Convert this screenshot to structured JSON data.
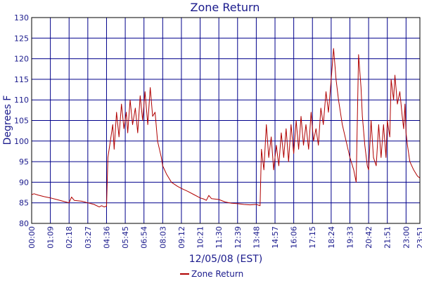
{
  "chart_data": {
    "type": "line",
    "title": "Zone Return",
    "xlabel": "12/05/08 (EST)",
    "ylabel": "Degrees F",
    "ylim": [
      80,
      130
    ],
    "y_ticks": [
      80,
      85,
      90,
      95,
      100,
      105,
      110,
      115,
      120,
      125,
      130
    ],
    "x_ticks": [
      "00:00",
      "01:09",
      "02:18",
      "03:27",
      "04:36",
      "05:45",
      "06:54",
      "08:03",
      "09:12",
      "10:21",
      "11:30",
      "12:39",
      "13:48",
      "14:57",
      "16:06",
      "17:15",
      "18:24",
      "19:33",
      "20:42",
      "21:51",
      "23:00",
      "23:51"
    ],
    "grid": true,
    "legend_position": "bottom-center",
    "series": [
      {
        "name": "Zone Return",
        "color": "#b00000",
        "points": [
          [
            "00:00",
            87.0
          ],
          [
            "00:09",
            87.2
          ],
          [
            "00:23",
            86.9
          ],
          [
            "00:46",
            86.5
          ],
          [
            "01:09",
            86.2
          ],
          [
            "01:32",
            85.8
          ],
          [
            "01:55",
            85.4
          ],
          [
            "02:18",
            85.0
          ],
          [
            "02:27",
            86.4
          ],
          [
            "02:37",
            85.6
          ],
          [
            "03:04",
            85.4
          ],
          [
            "03:27",
            85.0
          ],
          [
            "03:50",
            84.6
          ],
          [
            "04:09",
            84.0
          ],
          [
            "04:18",
            84.3
          ],
          [
            "04:27",
            84.0
          ],
          [
            "04:36",
            84.2
          ],
          [
            "04:41",
            96.0
          ],
          [
            "04:50",
            100.0
          ],
          [
            "04:59",
            104.0
          ],
          [
            "05:04",
            98.0
          ],
          [
            "05:13",
            107.0
          ],
          [
            "05:22",
            101.0
          ],
          [
            "05:31",
            109.0
          ],
          [
            "05:40",
            103.0
          ],
          [
            "05:49",
            107.0
          ],
          [
            "05:54",
            102.0
          ],
          [
            "06:03",
            110.0
          ],
          [
            "06:12",
            104.0
          ],
          [
            "06:22",
            108.0
          ],
          [
            "06:31",
            102.0
          ],
          [
            "06:40",
            111.0
          ],
          [
            "06:49",
            105.0
          ],
          [
            "06:58",
            112.0
          ],
          [
            "07:08",
            104.0
          ],
          [
            "07:17",
            113.0
          ],
          [
            "07:26",
            106.0
          ],
          [
            "07:35",
            107.0
          ],
          [
            "07:44",
            100.0
          ],
          [
            "07:58",
            96.0
          ],
          [
            "08:03",
            94.0
          ],
          [
            "08:17",
            92.0
          ],
          [
            "08:35",
            90.0
          ],
          [
            "08:58",
            89.0
          ],
          [
            "09:12",
            88.5
          ],
          [
            "09:35",
            87.8
          ],
          [
            "09:58",
            87.0
          ],
          [
            "10:21",
            86.2
          ],
          [
            "10:35",
            85.9
          ],
          [
            "10:44",
            85.6
          ],
          [
            "10:53",
            86.8
          ],
          [
            "11:03",
            86.0
          ],
          [
            "11:30",
            85.8
          ],
          [
            "11:53",
            85.2
          ],
          [
            "12:16",
            84.9
          ],
          [
            "12:39",
            84.8
          ],
          [
            "13:02",
            84.6
          ],
          [
            "13:25",
            84.5
          ],
          [
            "13:48",
            84.6
          ],
          [
            "14:02",
            84.3
          ],
          [
            "14:07",
            98.0
          ],
          [
            "14:16",
            93.0
          ],
          [
            "14:25",
            104.0
          ],
          [
            "14:34",
            96.0
          ],
          [
            "14:43",
            101.0
          ],
          [
            "14:52",
            93.0
          ],
          [
            "15:02",
            99.0
          ],
          [
            "15:11",
            94.0
          ],
          [
            "15:20",
            102.0
          ],
          [
            "15:29",
            96.0
          ],
          [
            "15:38",
            103.0
          ],
          [
            "15:47",
            95.0
          ],
          [
            "15:56",
            104.0
          ],
          [
            "16:06",
            97.0
          ],
          [
            "16:15",
            105.0
          ],
          [
            "16:24",
            98.0
          ],
          [
            "16:33",
            106.0
          ],
          [
            "16:42",
            99.0
          ],
          [
            "16:51",
            104.0
          ],
          [
            "17:01",
            98.0
          ],
          [
            "17:10",
            107.0
          ],
          [
            "17:19",
            100.0
          ],
          [
            "17:28",
            103.0
          ],
          [
            "17:37",
            99.0
          ],
          [
            "17:46",
            108.0
          ],
          [
            "17:55",
            104.0
          ],
          [
            "18:05",
            112.0
          ],
          [
            "18:14",
            107.0
          ],
          [
            "18:24",
            115.0
          ],
          [
            "18:33",
            122.5
          ],
          [
            "18:42",
            115.0
          ],
          [
            "18:51",
            110.0
          ],
          [
            "19:05",
            104.0
          ],
          [
            "19:19",
            100.0
          ],
          [
            "19:33",
            96.0
          ],
          [
            "19:47",
            93.0
          ],
          [
            "19:56",
            90.0
          ],
          [
            "20:05",
            121.0
          ],
          [
            "20:14",
            113.0
          ],
          [
            "20:19",
            106.0
          ],
          [
            "20:28",
            99.0
          ],
          [
            "20:37",
            94.0
          ],
          [
            "20:42",
            93.0
          ],
          [
            "20:51",
            105.0
          ],
          [
            "21:00",
            96.0
          ],
          [
            "21:10",
            94.0
          ],
          [
            "21:19",
            104.0
          ],
          [
            "21:28",
            96.0
          ],
          [
            "21:37",
            104.0
          ],
          [
            "21:46",
            96.0
          ],
          [
            "21:51",
            105.0
          ],
          [
            "22:00",
            101.0
          ],
          [
            "22:05",
            115.0
          ],
          [
            "22:14",
            110.0
          ],
          [
            "22:19",
            116.0
          ],
          [
            "22:28",
            109.0
          ],
          [
            "22:37",
            112.0
          ],
          [
            "22:46",
            106.0
          ],
          [
            "22:51",
            103.0
          ],
          [
            "22:56",
            109.0
          ],
          [
            "23:00",
            102.0
          ],
          [
            "23:05",
            99.0
          ],
          [
            "23:14",
            95.0
          ],
          [
            "23:28",
            93.0
          ],
          [
            "23:42",
            91.5
          ],
          [
            "23:51",
            91.0
          ]
        ]
      }
    ]
  }
}
